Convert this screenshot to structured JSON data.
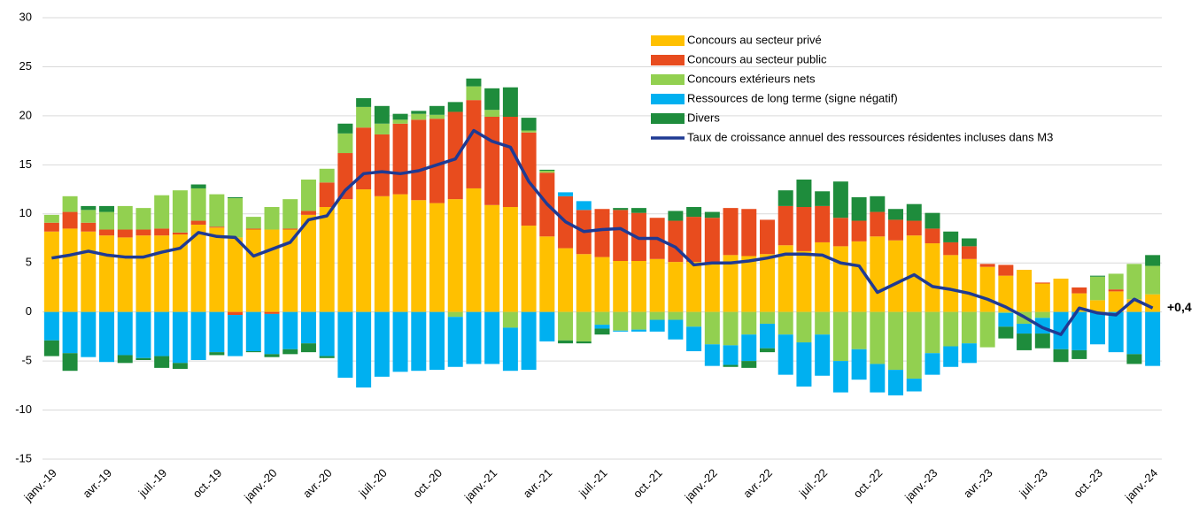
{
  "chart_data": {
    "type": "bar",
    "categories": [
      "janv.-19",
      null,
      null,
      "avr.-19",
      null,
      null,
      "juil.-19",
      null,
      null,
      "oct.-19",
      null,
      null,
      "janv.-20",
      null,
      null,
      "avr.-20",
      null,
      null,
      "juil.-20",
      null,
      null,
      "oct.-20",
      null,
      null,
      "janv.-21",
      null,
      null,
      "avr.-21",
      null,
      null,
      "juil.-21",
      null,
      null,
      "oct.-21",
      null,
      null,
      "janv.-22",
      null,
      null,
      "avr.-22",
      null,
      null,
      "juil.-22",
      null,
      null,
      "oct.-22",
      null,
      null,
      "janv.-23",
      null,
      null,
      "avr.-23",
      null,
      null,
      "juil.-23",
      null,
      null,
      "oct.-23",
      null,
      null,
      "janv.-24"
    ],
    "series": [
      {
        "name": "Concours au secteur privé",
        "color": "#FFC000",
        "values": [
          8.2,
          8.5,
          8.2,
          7.8,
          7.6,
          7.8,
          7.8,
          7.9,
          8.9,
          8.6,
          7.6,
          8.4,
          8.4,
          8.4,
          9.9,
          10.7,
          11.5,
          12.5,
          11.8,
          12.0,
          11.4,
          11.1,
          11.5,
          12.6,
          10.9,
          10.7,
          8.8,
          7.7,
          6.5,
          5.9,
          5.6,
          5.2,
          5.2,
          5.4,
          5.1,
          5.1,
          5.0,
          5.8,
          5.7,
          5.9,
          6.8,
          6.2,
          7.1,
          6.7,
          7.2,
          7.7,
          7.3,
          7.8,
          7.0,
          5.8,
          5.4,
          4.6,
          3.7,
          4.3,
          2.9,
          3.4,
          1.9,
          1.2,
          2.1,
          1.3,
          1.8
        ]
      },
      {
        "name": "Concours au secteur public",
        "color": "#E84C1E",
        "values": [
          0.9,
          1.7,
          0.9,
          0.6,
          0.8,
          0.6,
          0.7,
          0.2,
          0.4,
          0.1,
          -0.3,
          0.1,
          -0.2,
          0.1,
          0.4,
          2.5,
          4.7,
          6.3,
          6.3,
          7.2,
          8.2,
          8.6,
          8.9,
          9.0,
          9.0,
          9.2,
          9.5,
          6.5,
          5.3,
          4.5,
          4.9,
          5.2,
          4.9,
          4.2,
          4.2,
          4.6,
          4.6,
          4.8,
          4.8,
          3.5,
          4.0,
          4.5,
          3.7,
          2.9,
          2.1,
          2.5,
          2.1,
          1.5,
          1.5,
          1.3,
          1.3,
          0.3,
          1.1,
          0.0,
          0.1,
          0.0,
          0.6,
          0.0,
          0.2,
          0.0,
          0.0
        ]
      },
      {
        "name": "Concours extérieurs nets",
        "color": "#92D050",
        "values": [
          0.8,
          1.6,
          1.3,
          1.8,
          2.4,
          2.2,
          3.4,
          4.3,
          3.3,
          3.3,
          4.0,
          1.2,
          2.3,
          3.0,
          3.2,
          1.4,
          2.0,
          2.1,
          1.1,
          0.4,
          0.6,
          0.4,
          -0.5,
          1.4,
          0.7,
          -1.6,
          0.2,
          0.2,
          -2.9,
          -3.0,
          -1.3,
          -1.9,
          -1.8,
          -0.8,
          -0.8,
          -1.5,
          -3.3,
          -3.4,
          -2.3,
          -1.2,
          -2.3,
          -3.1,
          -2.3,
          -5.0,
          -3.8,
          -5.3,
          -5.9,
          -6.8,
          -4.2,
          -3.5,
          -3.2,
          -3.6,
          -0.1,
          -1.2,
          -0.6,
          0.0,
          0.0,
          2.4,
          1.6,
          3.6,
          2.9
        ]
      },
      {
        "name": "Ressources de long terme (signe négatif)",
        "color": "#00B0F0",
        "values": [
          -2.9,
          -4.2,
          -4.6,
          -5.1,
          -4.4,
          -4.7,
          -4.5,
          -5.2,
          -4.9,
          -4.1,
          -4.2,
          -4.0,
          -4.1,
          -3.8,
          -3.2,
          -4.5,
          -6.7,
          -7.7,
          -6.6,
          -6.1,
          -6.0,
          -5.9,
          -5.1,
          -5.3,
          -5.3,
          -4.4,
          -5.9,
          -3.0,
          0.4,
          0.9,
          -0.4,
          -0.1,
          -0.2,
          -1.2,
          -2.0,
          -2.5,
          -2.2,
          -2.0,
          -2.7,
          -2.5,
          -4.1,
          -4.5,
          -4.2,
          -3.2,
          -3.1,
          -2.9,
          -2.6,
          -1.3,
          -2.2,
          -2.1,
          -2.0,
          0.0,
          -1.4,
          -1.0,
          -1.6,
          -3.8,
          -3.9,
          -3.3,
          -4.1,
          -4.3,
          -5.5
        ]
      },
      {
        "name": "Divers",
        "color": "#1E8C3C",
        "values": [
          -1.6,
          -1.8,
          0.4,
          0.6,
          -0.8,
          -0.2,
          -1.2,
          -0.6,
          0.4,
          -0.3,
          0.1,
          -0.1,
          -0.3,
          -0.5,
          -0.9,
          -0.2,
          1.0,
          0.9,
          1.8,
          0.6,
          0.3,
          0.9,
          1.0,
          0.8,
          2.2,
          3.0,
          1.3,
          0.1,
          -0.3,
          -0.2,
          -0.6,
          0.2,
          0.5,
          0.0,
          1.0,
          1.0,
          0.6,
          -0.2,
          -0.7,
          -0.4,
          1.6,
          2.8,
          1.5,
          3.7,
          2.4,
          1.6,
          1.1,
          1.7,
          1.6,
          1.1,
          0.8,
          0.0,
          -1.2,
          -1.7,
          -1.5,
          -1.3,
          -0.9,
          0.1,
          0.0,
          -1.0,
          1.1
        ]
      },
      {
        "name": "Taux de croissance annuel des ressources résidentes incluses dans M3",
        "color": "#1F3A93",
        "type": "line",
        "values": [
          5.5,
          5.8,
          6.2,
          5.8,
          5.6,
          5.6,
          6.1,
          6.5,
          8.1,
          7.7,
          7.6,
          5.7,
          6.4,
          7.1,
          9.4,
          9.8,
          12.4,
          14.1,
          14.3,
          14.1,
          14.4,
          15.0,
          15.6,
          18.5,
          17.4,
          16.8,
          13.3,
          11.0,
          9.2,
          8.2,
          8.4,
          8.5,
          7.5,
          7.5,
          6.6,
          4.8,
          5.0,
          5.0,
          5.2,
          5.5,
          5.9,
          5.9,
          5.8,
          5.0,
          4.7,
          2.0,
          2.9,
          3.8,
          2.6,
          2.3,
          1.9,
          1.3,
          0.5,
          -0.5,
          -1.6,
          -2.3,
          0.4,
          -0.1,
          -0.3,
          1.3,
          0.4
        ]
      }
    ],
    "annotations": [
      {
        "text": "+0,4",
        "value": 0.4
      }
    ],
    "ylim": [
      -15,
      30
    ],
    "yticks": [
      -15,
      -10,
      -5,
      0,
      5,
      10,
      15,
      20,
      25,
      30
    ],
    "grid": true,
    "legend": "top-right"
  }
}
